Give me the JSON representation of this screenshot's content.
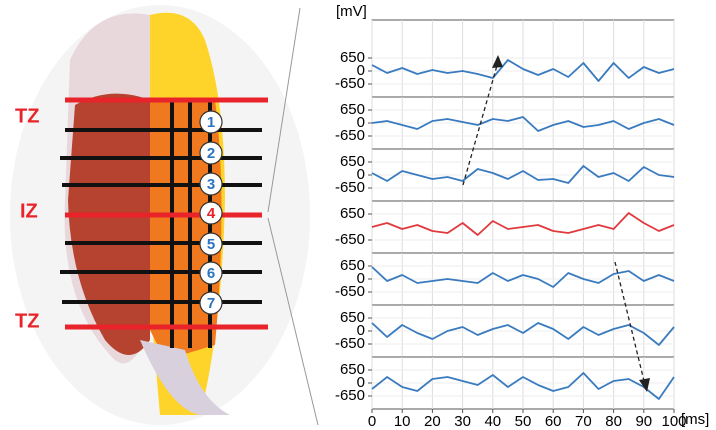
{
  "anatomy": {
    "zone_labels": [
      "TZ",
      "IZ",
      "TZ"
    ],
    "electrodes": [
      "1",
      "2",
      "3",
      "4",
      "5",
      "6",
      "7"
    ]
  },
  "chart_data": [
    {
      "type": "line",
      "y_label": "[mV]",
      "x": [
        0,
        5,
        10,
        15,
        20,
        25,
        30,
        35,
        40,
        45,
        50,
        55,
        60,
        65,
        70,
        75,
        80,
        85,
        90,
        95,
        100
      ],
      "values": [
        300,
        -100,
        150,
        -150,
        50,
        -100,
        0,
        -150,
        -350,
        550,
        100,
        -200,
        100,
        -300,
        400,
        -500,
        400,
        -350,
        200,
        -100,
        100
      ],
      "color": "#3a7bbf",
      "xlim": [
        0,
        100
      ],
      "ylim": [
        -1300,
        1300
      ],
      "yticks": [
        650,
        0,
        -650
      ]
    },
    {
      "type": "line",
      "x": [
        0,
        5,
        10,
        15,
        20,
        25,
        30,
        35,
        40,
        45,
        50,
        55,
        60,
        65,
        70,
        75,
        80,
        85,
        90,
        95,
        100
      ],
      "values": [
        0,
        100,
        -100,
        -300,
        100,
        200,
        50,
        -100,
        200,
        100,
        300,
        -400,
        -100,
        100,
        -200,
        -100,
        100,
        -300,
        0,
        200,
        -100
      ],
      "color": "#3a7bbf",
      "xlim": [
        0,
        100
      ],
      "ylim": [
        -1300,
        1300
      ],
      "yticks": [
        650,
        0,
        -650
      ]
    },
    {
      "type": "line",
      "x": [
        0,
        5,
        10,
        15,
        20,
        25,
        30,
        35,
        40,
        45,
        50,
        55,
        60,
        65,
        70,
        75,
        80,
        85,
        90,
        95,
        100
      ],
      "values": [
        100,
        -300,
        200,
        0,
        -200,
        -100,
        -300,
        300,
        100,
        -200,
        200,
        -250,
        -200,
        -400,
        450,
        -100,
        100,
        -300,
        400,
        0,
        -100
      ],
      "color": "#3a7bbf",
      "xlim": [
        0,
        100
      ],
      "ylim": [
        -1300,
        1300
      ],
      "yticks": [
        650,
        0,
        -650
      ]
    },
    {
      "type": "line",
      "x": [
        0,
        5,
        10,
        15,
        20,
        25,
        30,
        35,
        40,
        45,
        50,
        55,
        60,
        65,
        70,
        75,
        80,
        85,
        90,
        95,
        100
      ],
      "values": [
        0,
        200,
        -100,
        100,
        -200,
        -300,
        200,
        -400,
        300,
        -100,
        0,
        100,
        -200,
        -300,
        -100,
        100,
        -100,
        700,
        200,
        -200,
        100
      ],
      "color": "#e0393e",
      "xlim": [
        0,
        100
      ],
      "ylim": [
        -1300,
        1300
      ],
      "yticks": [
        650,
        -650
      ]
    },
    {
      "type": "line",
      "x": [
        0,
        5,
        10,
        15,
        20,
        25,
        30,
        35,
        40,
        45,
        50,
        55,
        60,
        65,
        70,
        75,
        80,
        85,
        90,
        95,
        100
      ],
      "values": [
        600,
        -100,
        200,
        -200,
        -100,
        0,
        -100,
        -200,
        300,
        -100,
        200,
        0,
        -400,
        300,
        0,
        -200,
        250,
        400,
        -100,
        200,
        -100
      ],
      "color": "#3a7bbf",
      "xlim": [
        0,
        100
      ],
      "ylim": [
        -1300,
        1300
      ],
      "yticks": [
        650,
        0,
        -650
      ]
    },
    {
      "type": "line",
      "x": [
        0,
        5,
        10,
        15,
        20,
        25,
        30,
        35,
        40,
        45,
        50,
        55,
        60,
        65,
        70,
        75,
        80,
        85,
        90,
        95,
        100
      ],
      "values": [
        400,
        -300,
        300,
        -100,
        -400,
        0,
        200,
        -200,
        100,
        300,
        -100,
        400,
        100,
        -400,
        200,
        -200,
        100,
        300,
        -100,
        -700,
        200
      ],
      "color": "#3a7bbf",
      "xlim": [
        0,
        100
      ],
      "ylim": [
        -1300,
        1300
      ],
      "yticks": [
        650,
        0,
        -650
      ]
    },
    {
      "type": "line",
      "x_label": "[ms]",
      "x": [
        0,
        5,
        10,
        15,
        20,
        25,
        30,
        35,
        40,
        45,
        50,
        55,
        60,
        65,
        70,
        75,
        80,
        85,
        90,
        95,
        100
      ],
      "values": [
        -300,
        300,
        -200,
        -400,
        200,
        300,
        100,
        -100,
        400,
        -200,
        300,
        -100,
        -400,
        -200,
        500,
        -300,
        100,
        200,
        -200,
        -800,
        300
      ],
      "color": "#3a7bbf",
      "xlim": [
        0,
        100
      ],
      "ylim": [
        -1300,
        1300
      ],
      "yticks": [
        650,
        0,
        -650
      ],
      "xticks": [
        0,
        10,
        20,
        30,
        40,
        50,
        60,
        70,
        80,
        90,
        100
      ],
      "grid": true
    }
  ]
}
